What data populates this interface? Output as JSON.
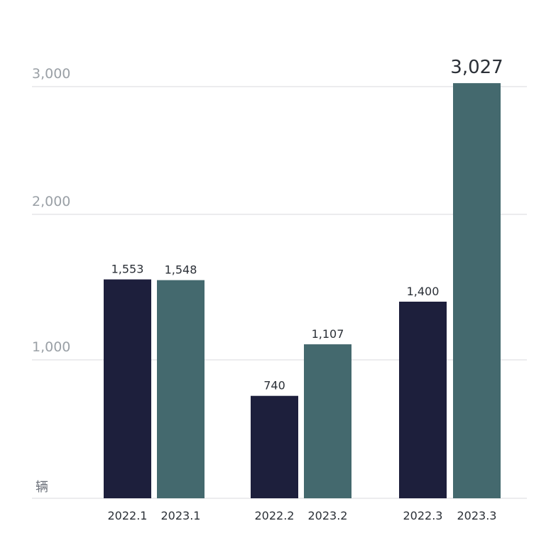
{
  "chart_data": {
    "type": "bar",
    "categories": [
      "2022.1",
      "2023.1",
      "2022.2",
      "2023.2",
      "2022.3",
      "2023.3"
    ],
    "values": [
      1553,
      1548,
      740,
      1107,
      1400,
      3027
    ],
    "value_labels": [
      "1,553",
      "1,548",
      "740",
      "1,107",
      "1,400",
      "3,027"
    ],
    "series_of_bar": [
      "2022",
      "2023",
      "2022",
      "2023",
      "2022",
      "2023"
    ],
    "yticks": [
      {
        "value": 1000,
        "label": "1,000"
      },
      {
        "value": 2000,
        "label": "2,000"
      },
      {
        "value": 3000,
        "label": "3,000"
      }
    ],
    "ylim": [
      0,
      3000
    ],
    "unit": "辆",
    "grid": true,
    "scale": "piecewise",
    "colors": {
      "2022": "#1d1f3c",
      "2023": "#44696e",
      "grid": "#d9dadc"
    }
  }
}
